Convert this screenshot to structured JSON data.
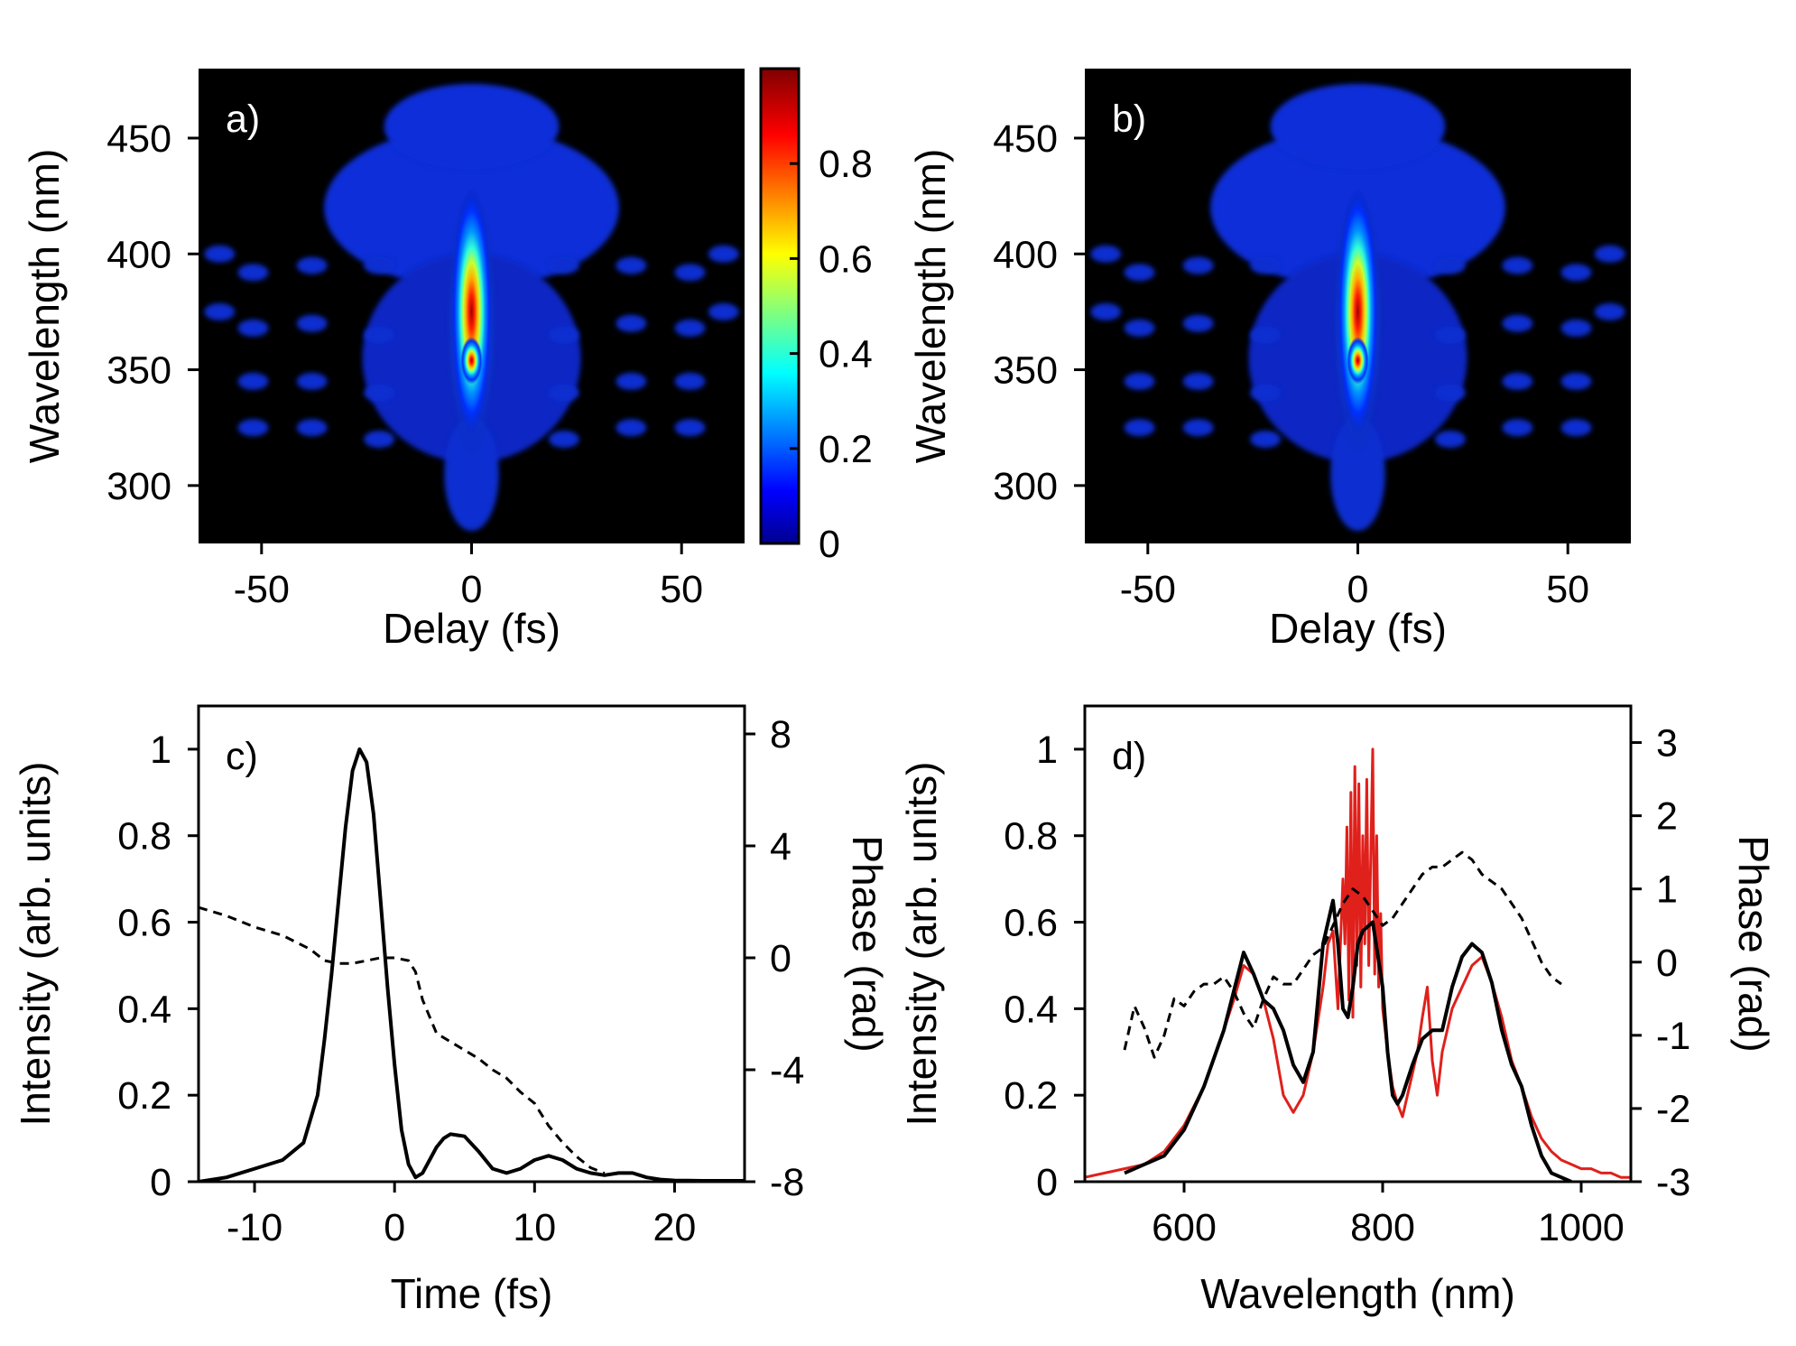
{
  "chart_data": [
    {
      "panel": "a)",
      "type": "heatmap",
      "xlabel": "Delay (fs)",
      "ylabel": "Wavelength (nm)",
      "xlim": [
        -65,
        65
      ],
      "ylim": [
        275,
        480
      ],
      "xticks": [
        -50,
        0,
        50
      ],
      "yticks": [
        300,
        350,
        400,
        450
      ],
      "colormap": "jet",
      "background": "#000000",
      "peak": {
        "delay": 0,
        "wavelength": 375,
        "value": 1.0
      },
      "colorbar": {
        "min": 0,
        "max": 1,
        "ticks": [
          0,
          0.2,
          0.4,
          0.6,
          0.8
        ]
      }
    },
    {
      "panel": "b)",
      "type": "heatmap",
      "xlabel": "Delay (fs)",
      "ylabel": "Wavelength (nm)",
      "xlim": [
        -65,
        65
      ],
      "ylim": [
        275,
        480
      ],
      "xticks": [
        -50,
        0,
        50
      ],
      "yticks": [
        300,
        350,
        400,
        450
      ],
      "colormap": "jet",
      "background": "#000000",
      "peak": {
        "delay": 0,
        "wavelength": 375,
        "value": 1.0
      }
    },
    {
      "panel": "c)",
      "type": "line",
      "xlabel": "Time (fs)",
      "ylabel": "Intensity (arb. units)",
      "y2label": "Phase (rad)",
      "xlim": [
        -14,
        25
      ],
      "ylim": [
        0,
        1.1
      ],
      "y2lim": [
        -8,
        9
      ],
      "xticks": [
        -10,
        0,
        10,
        20
      ],
      "yticks": [
        0,
        0.2,
        0.4,
        0.6,
        0.8,
        1
      ],
      "y2ticks": [
        -8,
        -4,
        0,
        4,
        8
      ],
      "series": [
        {
          "axis": "left",
          "color": "#000000",
          "style": "solid",
          "x": [
            -14,
            -12,
            -10,
            -8,
            -6.5,
            -5.5,
            -5,
            -4.5,
            -4,
            -3.5,
            -3,
            -2.5,
            -2,
            -1.5,
            -1,
            -0.5,
            0,
            0.5,
            1,
            1.5,
            2,
            2.5,
            3,
            3.5,
            4,
            5,
            6,
            7,
            8,
            9,
            10,
            11,
            12,
            13,
            14,
            15,
            16,
            17,
            18,
            19,
            20,
            22,
            25
          ],
          "y": [
            0.0,
            0.01,
            0.03,
            0.05,
            0.09,
            0.2,
            0.33,
            0.48,
            0.65,
            0.82,
            0.95,
            1.0,
            0.97,
            0.85,
            0.65,
            0.45,
            0.27,
            0.12,
            0.04,
            0.01,
            0.02,
            0.05,
            0.08,
            0.1,
            0.11,
            0.105,
            0.07,
            0.03,
            0.02,
            0.03,
            0.05,
            0.06,
            0.05,
            0.03,
            0.02,
            0.015,
            0.02,
            0.02,
            0.01,
            0.005,
            0.003,
            0.002,
            0.002
          ]
        },
        {
          "axis": "right",
          "color": "#000000",
          "style": "dashed",
          "x": [
            -14,
            -12,
            -10,
            -8,
            -6,
            -5,
            -4,
            -3,
            -2,
            -1,
            0,
            1,
            1.5,
            2,
            3,
            4,
            5,
            6,
            7,
            8,
            9,
            10,
            11,
            12,
            13,
            14,
            15
          ],
          "y": [
            1.8,
            1.5,
            1.1,
            0.8,
            0.3,
            -0.1,
            -0.2,
            -0.2,
            -0.1,
            0.0,
            0.0,
            -0.1,
            -0.5,
            -1.5,
            -2.7,
            -3.0,
            -3.3,
            -3.6,
            -4.0,
            -4.3,
            -4.8,
            -5.2,
            -6.0,
            -6.6,
            -7.1,
            -7.5,
            -7.7
          ]
        }
      ]
    },
    {
      "panel": "d)",
      "type": "line",
      "xlabel": "Wavelength (nm)",
      "ylabel": "Intensity (arb. units)",
      "y2label": "Phase (rad)",
      "xlim": [
        500,
        1050
      ],
      "ylim": [
        0,
        1.1
      ],
      "y2lim": [
        -3,
        3.5
      ],
      "xticks": [
        600,
        800,
        1000
      ],
      "yticks": [
        0,
        0.2,
        0.4,
        0.6,
        0.8,
        1
      ],
      "y2ticks": [
        -3,
        -2,
        -1,
        0,
        1,
        2,
        3
      ],
      "series": [
        {
          "axis": "left",
          "color": "#e0201b",
          "style": "solid",
          "x": [
            500,
            520,
            540,
            560,
            580,
            600,
            620,
            640,
            650,
            660,
            670,
            680,
            690,
            700,
            710,
            720,
            730,
            740,
            745,
            750,
            755,
            760,
            762,
            764,
            766,
            768,
            770,
            772,
            774,
            776,
            778,
            780,
            782,
            784,
            786,
            788,
            790,
            792,
            794,
            796,
            798,
            800,
            805,
            810,
            815,
            820,
            825,
            830,
            835,
            840,
            845,
            850,
            855,
            860,
            870,
            880,
            890,
            900,
            910,
            920,
            930,
            940,
            950,
            960,
            970,
            980,
            990,
            1000,
            1010,
            1020,
            1030,
            1040,
            1050
          ],
          "y": [
            0.01,
            0.02,
            0.03,
            0.04,
            0.07,
            0.13,
            0.22,
            0.35,
            0.42,
            0.5,
            0.48,
            0.42,
            0.33,
            0.2,
            0.16,
            0.2,
            0.3,
            0.45,
            0.55,
            0.58,
            0.4,
            0.7,
            0.55,
            0.82,
            0.42,
            0.9,
            0.38,
            0.96,
            0.5,
            0.92,
            0.45,
            0.8,
            0.55,
            0.93,
            0.5,
            0.75,
            1.0,
            0.48,
            0.8,
            0.45,
            0.62,
            0.4,
            0.3,
            0.22,
            0.18,
            0.15,
            0.2,
            0.25,
            0.3,
            0.38,
            0.45,
            0.28,
            0.2,
            0.3,
            0.4,
            0.45,
            0.5,
            0.52,
            0.46,
            0.38,
            0.28,
            0.22,
            0.15,
            0.1,
            0.07,
            0.05,
            0.04,
            0.03,
            0.03,
            0.02,
            0.02,
            0.01,
            0.01
          ]
        },
        {
          "axis": "left",
          "color": "#000000",
          "style": "solid",
          "x": [
            540,
            560,
            580,
            600,
            620,
            640,
            650,
            660,
            670,
            680,
            690,
            700,
            710,
            720,
            730,
            740,
            750,
            755,
            760,
            765,
            770,
            775,
            780,
            790,
            800,
            805,
            810,
            815,
            820,
            830,
            840,
            850,
            860,
            870,
            880,
            890,
            900,
            910,
            920,
            930,
            940,
            950,
            960,
            970,
            980,
            990
          ],
          "y": [
            0.02,
            0.04,
            0.06,
            0.12,
            0.22,
            0.35,
            0.44,
            0.53,
            0.48,
            0.42,
            0.4,
            0.35,
            0.27,
            0.23,
            0.3,
            0.55,
            0.65,
            0.55,
            0.4,
            0.38,
            0.45,
            0.55,
            0.58,
            0.6,
            0.45,
            0.3,
            0.2,
            0.18,
            0.2,
            0.27,
            0.33,
            0.35,
            0.35,
            0.45,
            0.52,
            0.55,
            0.53,
            0.46,
            0.35,
            0.27,
            0.22,
            0.13,
            0.06,
            0.02,
            0.01,
            0.0
          ]
        },
        {
          "axis": "right",
          "color": "#000000",
          "style": "dashed",
          "x": [
            540,
            550,
            560,
            570,
            580,
            590,
            600,
            610,
            620,
            630,
            640,
            650,
            660,
            670,
            680,
            690,
            700,
            710,
            720,
            730,
            740,
            750,
            760,
            770,
            780,
            790,
            800,
            810,
            820,
            830,
            840,
            850,
            860,
            870,
            880,
            890,
            900,
            910,
            920,
            930,
            940,
            950,
            960,
            970,
            980
          ],
          "y": [
            -1.2,
            -0.6,
            -0.9,
            -1.3,
            -1.0,
            -0.5,
            -0.6,
            -0.4,
            -0.3,
            -0.3,
            -0.2,
            -0.4,
            -0.7,
            -0.9,
            -0.5,
            -0.2,
            -0.3,
            -0.3,
            -0.1,
            0.1,
            0.2,
            0.5,
            0.8,
            1.0,
            0.9,
            0.7,
            0.5,
            0.6,
            0.8,
            1.0,
            1.2,
            1.3,
            1.3,
            1.4,
            1.5,
            1.4,
            1.2,
            1.1,
            1.0,
            0.8,
            0.6,
            0.3,
            0.0,
            -0.2,
            -0.3
          ]
        }
      ]
    }
  ]
}
